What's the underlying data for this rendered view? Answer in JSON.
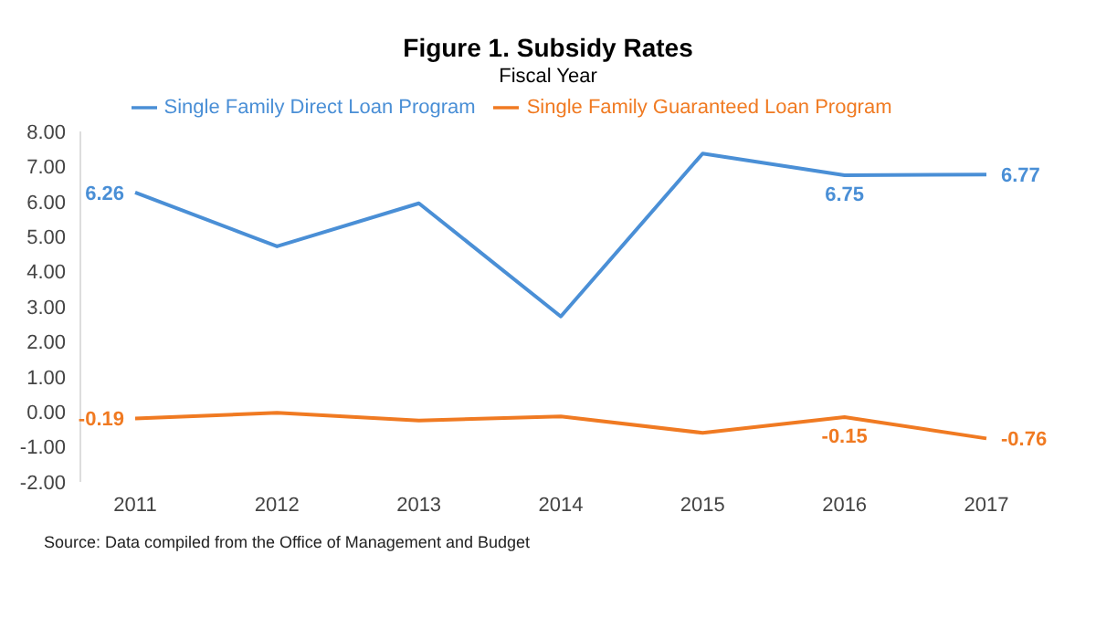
{
  "chart_data": {
    "type": "line",
    "title": "Figure 1. Subsidy Rates",
    "subtitle": "Fiscal Year",
    "categories": [
      "2011",
      "2012",
      "2013",
      "2014",
      "2015",
      "2016",
      "2017"
    ],
    "series": [
      {
        "name": "Single Family Direct Loan Program",
        "color": "#4a8fd6",
        "values": [
          6.26,
          4.72,
          5.95,
          2.72,
          7.37,
          6.75,
          6.77
        ],
        "value_labels": [
          "6.26",
          null,
          null,
          null,
          null,
          "6.75",
          "6.77"
        ]
      },
      {
        "name": "Single Family Guaranteed Loan Program",
        "color": "#f07a22",
        "values": [
          -0.19,
          -0.03,
          -0.25,
          -0.13,
          -0.6,
          -0.15,
          -0.76
        ],
        "value_labels": [
          "-0.19",
          null,
          null,
          null,
          null,
          "-0.15",
          "-0.76"
        ]
      }
    ],
    "ylim": [
      -2,
      8
    ],
    "yticks": [
      {
        "value": -2,
        "label": "-2.00"
      },
      {
        "value": -1,
        "label": "-1.00"
      },
      {
        "value": 0,
        "label": "0.00"
      },
      {
        "value": 1,
        "label": "1.00"
      },
      {
        "value": 2,
        "label": "2.00"
      },
      {
        "value": 3,
        "label": "3.00"
      },
      {
        "value": 4,
        "label": "4.00"
      },
      {
        "value": 5,
        "label": "5.00"
      },
      {
        "value": 6,
        "label": "6.00"
      },
      {
        "value": 7,
        "label": "7.00"
      },
      {
        "value": 8,
        "label": "8.00"
      }
    ],
    "grid": false,
    "legend": "top",
    "marker": "none",
    "line_style": "solid",
    "annotations": [
      "Source: Data compiled from the Office of Management and Budget"
    ]
  }
}
